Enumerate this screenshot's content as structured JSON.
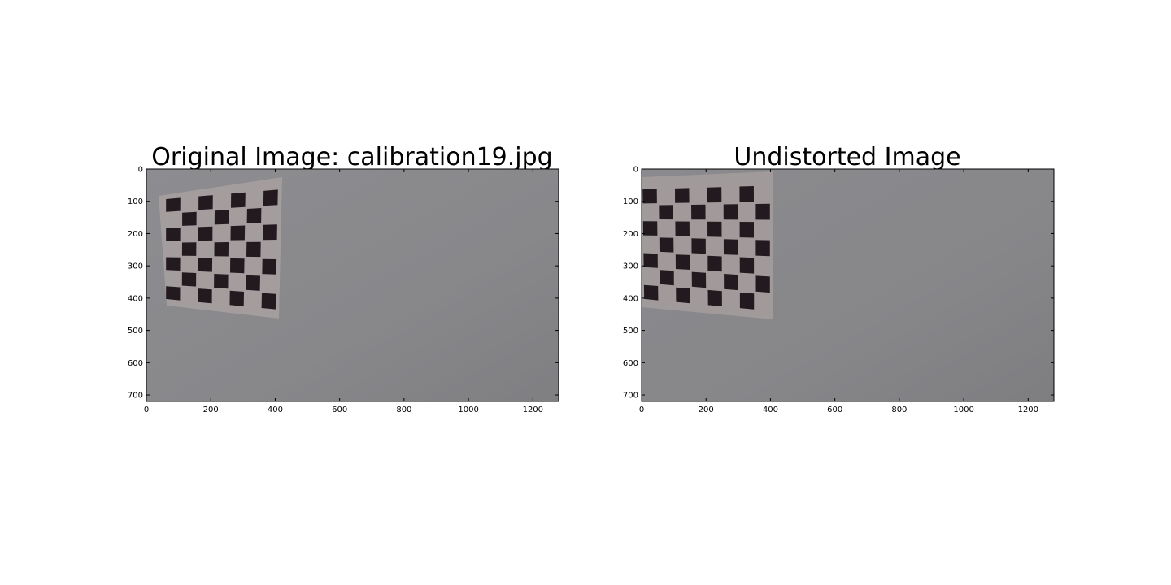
{
  "panels": [
    {
      "title": "Original Image: calibration19.jpg",
      "x_ticks": [
        "0",
        "200",
        "400",
        "600",
        "800",
        "1000",
        "1200"
      ],
      "y_ticks": [
        "0",
        "100",
        "200",
        "300",
        "400",
        "500",
        "600",
        "700"
      ],
      "image": {
        "description_icon": "checkerboard-photo",
        "wall_color": "#8a8a8d",
        "paper_color": "#a39d9e",
        "square_color": "#231a1f"
      }
    },
    {
      "title": "Undistorted Image",
      "x_ticks": [
        "0",
        "200",
        "400",
        "600",
        "800",
        "1000",
        "1200"
      ],
      "y_ticks": [
        "0",
        "100",
        "200",
        "300",
        "400",
        "500",
        "600",
        "700"
      ],
      "image": {
        "description_icon": "checkerboard-photo",
        "wall_color": "#88888b",
        "paper_color": "#a09a9b",
        "square_color": "#231a1f"
      }
    }
  ]
}
